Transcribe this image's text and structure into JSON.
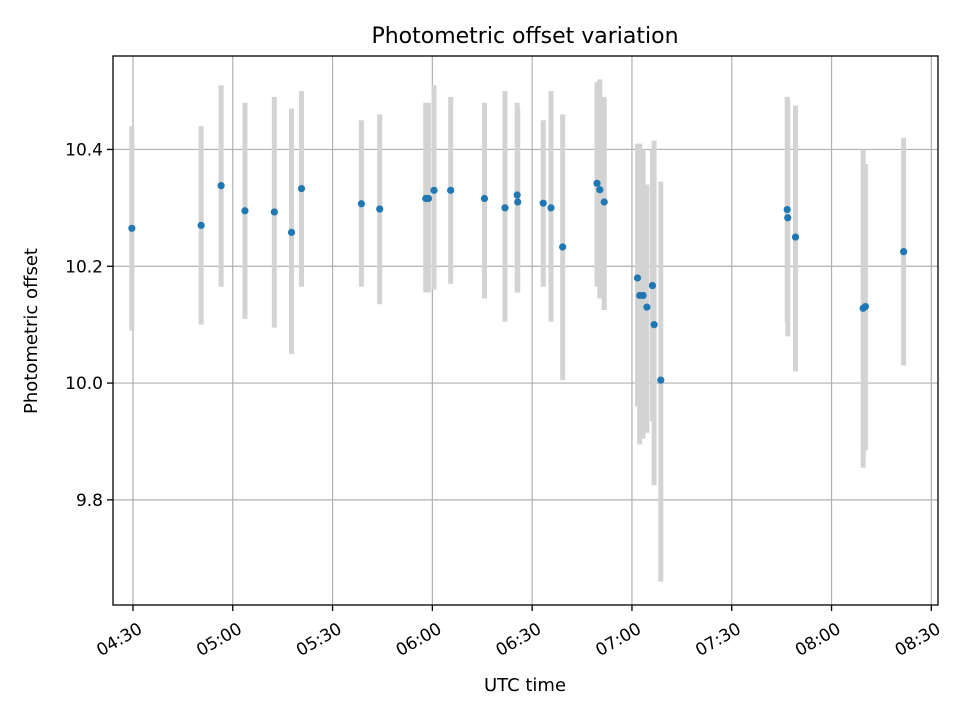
{
  "chart_data": {
    "type": "scatter",
    "title": "Photometric offset variation",
    "xlabel": "UTC time",
    "ylabel": "Photometric offset",
    "xlim": [
      "04:24",
      "08:32"
    ],
    "ylim": [
      9.62,
      10.56
    ],
    "grid": true,
    "xticks": [
      "04:30",
      "05:00",
      "05:30",
      "06:00",
      "06:30",
      "07:00",
      "07:30",
      "08:00",
      "08:30"
    ],
    "yticks": [
      9.8,
      10.0,
      10.2,
      10.4
    ],
    "ytick_labels": [
      "9.8",
      "10.0",
      "10.2",
      "10.4"
    ],
    "point_color": "#1f77b4",
    "errorbar_color": "#d3d3d3",
    "points": [
      {
        "t": "04:29:40",
        "y": 10.265,
        "lo": 10.09,
        "hi": 10.44
      },
      {
        "t": "04:50:30",
        "y": 10.27,
        "lo": 10.1,
        "hi": 10.44
      },
      {
        "t": "04:56:30",
        "y": 10.338,
        "lo": 10.165,
        "hi": 10.51
      },
      {
        "t": "05:03:40",
        "y": 10.295,
        "lo": 10.11,
        "hi": 10.48
      },
      {
        "t": "05:12:30",
        "y": 10.293,
        "lo": 10.095,
        "hi": 10.49
      },
      {
        "t": "05:17:40",
        "y": 10.258,
        "lo": 10.05,
        "hi": 10.47
      },
      {
        "t": "05:20:40",
        "y": 10.333,
        "lo": 10.165,
        "hi": 10.5
      },
      {
        "t": "05:38:40",
        "y": 10.307,
        "lo": 10.165,
        "hi": 10.45
      },
      {
        "t": "05:44:10",
        "y": 10.298,
        "lo": 10.135,
        "hi": 10.46
      },
      {
        "t": "05:58:00",
        "y": 10.316,
        "lo": 10.155,
        "hi": 10.48
      },
      {
        "t": "05:58:50",
        "y": 10.316,
        "lo": 10.155,
        "hi": 10.48
      },
      {
        "t": "06:00:30",
        "y": 10.33,
        "lo": 10.16,
        "hi": 10.51
      },
      {
        "t": "06:05:30",
        "y": 10.33,
        "lo": 10.17,
        "hi": 10.49
      },
      {
        "t": "06:15:40",
        "y": 10.316,
        "lo": 10.145,
        "hi": 10.48
      },
      {
        "t": "06:21:50",
        "y": 10.3,
        "lo": 10.105,
        "hi": 10.5
      },
      {
        "t": "06:25:30",
        "y": 10.322,
        "lo": 10.155,
        "hi": 10.48
      },
      {
        "t": "06:25:40",
        "y": 10.31,
        "lo": 10.155,
        "hi": 10.47
      },
      {
        "t": "06:33:20",
        "y": 10.308,
        "lo": 10.165,
        "hi": 10.45
      },
      {
        "t": "06:35:40",
        "y": 10.3,
        "lo": 10.105,
        "hi": 10.5
      },
      {
        "t": "06:39:10",
        "y": 10.233,
        "lo": 10.005,
        "hi": 10.46
      },
      {
        "t": "06:49:30",
        "y": 10.342,
        "lo": 10.165,
        "hi": 10.515
      },
      {
        "t": "06:50:20",
        "y": 10.331,
        "lo": 10.145,
        "hi": 10.52
      },
      {
        "t": "06:51:40",
        "y": 10.31,
        "lo": 10.125,
        "hi": 10.49
      },
      {
        "t": "07:01:40",
        "y": 10.18,
        "lo": 9.96,
        "hi": 10.41
      },
      {
        "t": "07:02:20",
        "y": 10.15,
        "lo": 9.895,
        "hi": 10.41
      },
      {
        "t": "07:03:20",
        "y": 10.15,
        "lo": 9.905,
        "hi": 10.4
      },
      {
        "t": "07:04:30",
        "y": 10.13,
        "lo": 9.915,
        "hi": 10.34
      },
      {
        "t": "07:06:10",
        "y": 10.167,
        "lo": 9.935,
        "hi": 10.4
      },
      {
        "t": "07:06:40",
        "y": 10.1,
        "lo": 9.825,
        "hi": 10.415
      },
      {
        "t": "07:08:40",
        "y": 10.005,
        "lo": 9.66,
        "hi": 10.345
      },
      {
        "t": "07:46:40",
        "y": 10.297,
        "lo": 10.105,
        "hi": 10.49
      },
      {
        "t": "07:46:50",
        "y": 10.283,
        "lo": 10.08,
        "hi": 10.485
      },
      {
        "t": "07:49:10",
        "y": 10.25,
        "lo": 10.02,
        "hi": 10.475
      },
      {
        "t": "08:09:30",
        "y": 10.128,
        "lo": 9.855,
        "hi": 10.4
      },
      {
        "t": "08:10:10",
        "y": 10.131,
        "lo": 9.885,
        "hi": 10.375
      },
      {
        "t": "08:21:40",
        "y": 10.225,
        "lo": 10.03,
        "hi": 10.42
      }
    ]
  }
}
